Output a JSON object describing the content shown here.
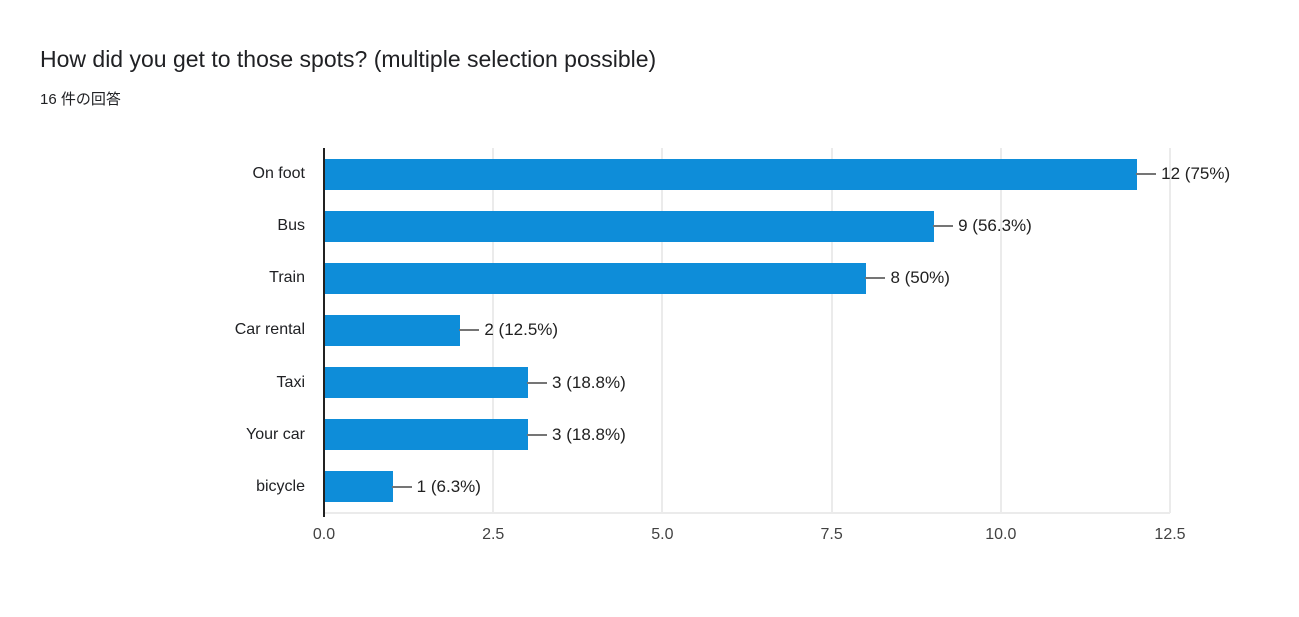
{
  "header": {
    "title": "How did you get to those spots? (multiple selection possible)",
    "subtitle": "16 件の回答"
  },
  "chart_data": {
    "type": "bar",
    "orientation": "horizontal",
    "title": "How did you get to those spots? (multiple selection possible)",
    "subtitle": "16 件の回答",
    "total_responses": 16,
    "categories": [
      "On foot",
      "Bus",
      "Train",
      "Car rental",
      "Taxi",
      "Your car",
      "bicycle"
    ],
    "values": [
      12,
      9,
      8,
      2,
      3,
      3,
      1
    ],
    "percentages": [
      75,
      56.3,
      50,
      12.5,
      18.8,
      18.8,
      6.3
    ],
    "value_labels": [
      "12 (75%)",
      "9 (56.3%)",
      "8 (50%)",
      "2 (12.5%)",
      "3 (18.8%)",
      "3 (18.8%)",
      "1 (6.3%)"
    ],
    "xlim": [
      0,
      12.5
    ],
    "xticks": [
      0,
      2.5,
      5,
      7.5,
      10,
      12.5
    ],
    "xtick_labels": [
      "0.0",
      "2.5",
      "5.0",
      "7.5",
      "10.0",
      "12.5"
    ],
    "grid": true,
    "legend": "none",
    "colors": {
      "bar": "#0e8dd9",
      "axis": "#212121",
      "gridline": "#ebebeb",
      "connector": "#757575",
      "value_text": "#212121",
      "category_text": "#202124",
      "tick_text": "#424242"
    }
  }
}
